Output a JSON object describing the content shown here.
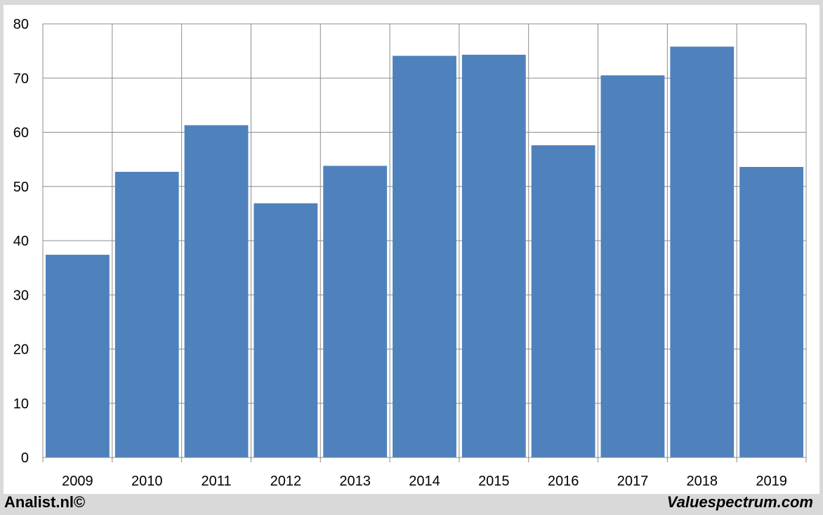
{
  "chart_data": {
    "type": "bar",
    "categories": [
      "2009",
      "2010",
      "2011",
      "2012",
      "2013",
      "2014",
      "2015",
      "2016",
      "2017",
      "2018",
      "2019"
    ],
    "values": [
      37.4,
      52.7,
      61.3,
      46.9,
      53.8,
      74.1,
      74.3,
      57.6,
      70.5,
      75.8,
      53.6
    ],
    "title": "",
    "xlabel": "",
    "ylabel": "",
    "ylim": [
      0,
      80
    ],
    "yticks": [
      0,
      10,
      20,
      30,
      40,
      50,
      60,
      70,
      80
    ],
    "grid": true,
    "bar_color": "#4f81bd"
  },
  "footer": {
    "left": "Analist.nl©",
    "right": "Valuespectrum.com"
  }
}
